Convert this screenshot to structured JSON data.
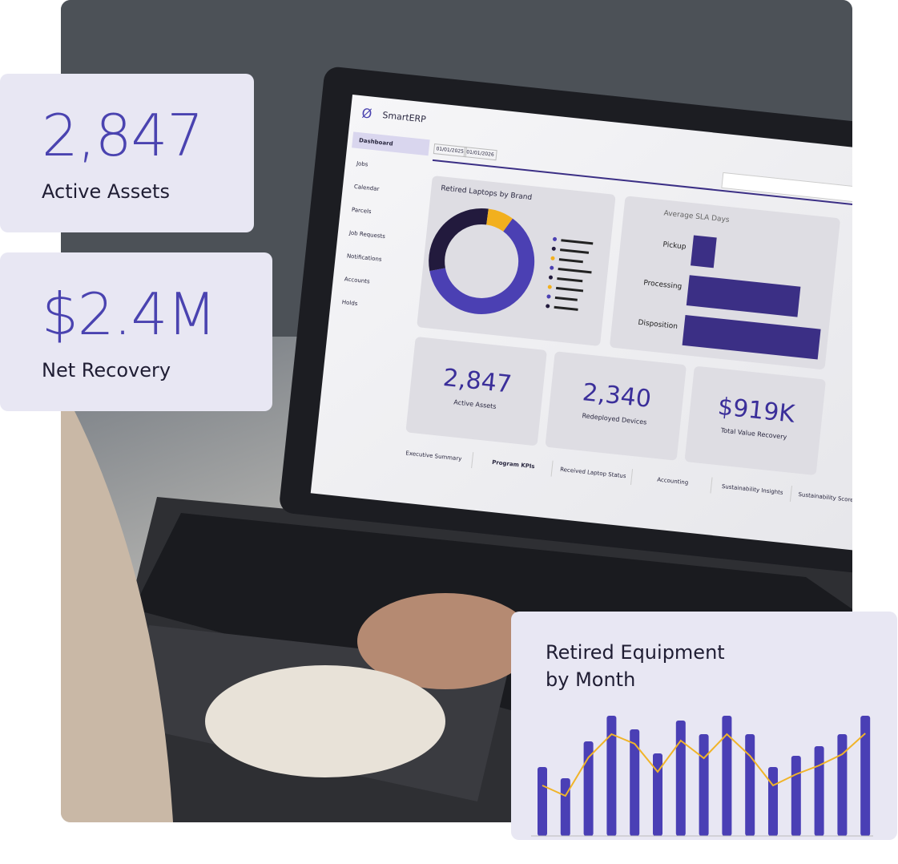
{
  "cards": [
    {
      "value": "2,847",
      "label": "Active Assets"
    },
    {
      "value": "$2.4M",
      "label": "Net Recovery"
    }
  ],
  "screen": {
    "app_name": "SmartERP",
    "nav": [
      "Dashboard",
      "Jobs",
      "Calendar",
      "Parcels",
      "Job Requests",
      "Notifications",
      "Accounts",
      "Holds"
    ],
    "date_from": "01/01/2025",
    "date_to": "01/01/2026",
    "kpis": [
      {
        "value": "2,847",
        "label": "Active Assets"
      },
      {
        "value": "2,340",
        "label": "Redeployed Devices"
      },
      {
        "value": "$919K",
        "label": "Total Value Recovery"
      }
    ],
    "tabs": [
      "Executive Summary",
      "Program KPIs",
      "Received Laptop Status",
      "Accounting",
      "Sustainability Insights",
      "Sustainability Scorecard"
    ]
  },
  "chart_data": [
    {
      "type": "donut",
      "title": "Retired Laptops by Brand",
      "values": [
        62,
        30,
        8
      ],
      "colors": [
        "#4b40b3",
        "#221a3d",
        "#f2b01e"
      ]
    },
    {
      "type": "hbar",
      "title": "Average SLA Days",
      "categories": [
        "Pickup",
        "Processing",
        "Disposition"
      ],
      "values": [
        1.7,
        8.2,
        10
      ],
      "color": "#3b2f85"
    },
    {
      "type": "bar",
      "title": "Retired Equipment by Month",
      "series": [
        {
          "color": "#4a3fb5",
          "values": [
            86,
            72,
            118,
            150,
            133,
            103,
            144,
            127,
            150,
            127,
            86,
            100,
            112,
            127,
            150
          ]
        },
        {
          "type": "line",
          "color": "#f0b429",
          "values": [
            63,
            50,
            98,
            127,
            115,
            80,
            119,
            97,
            127,
            100,
            63,
            77,
            88,
            102,
            128
          ]
        }
      ]
    }
  ]
}
